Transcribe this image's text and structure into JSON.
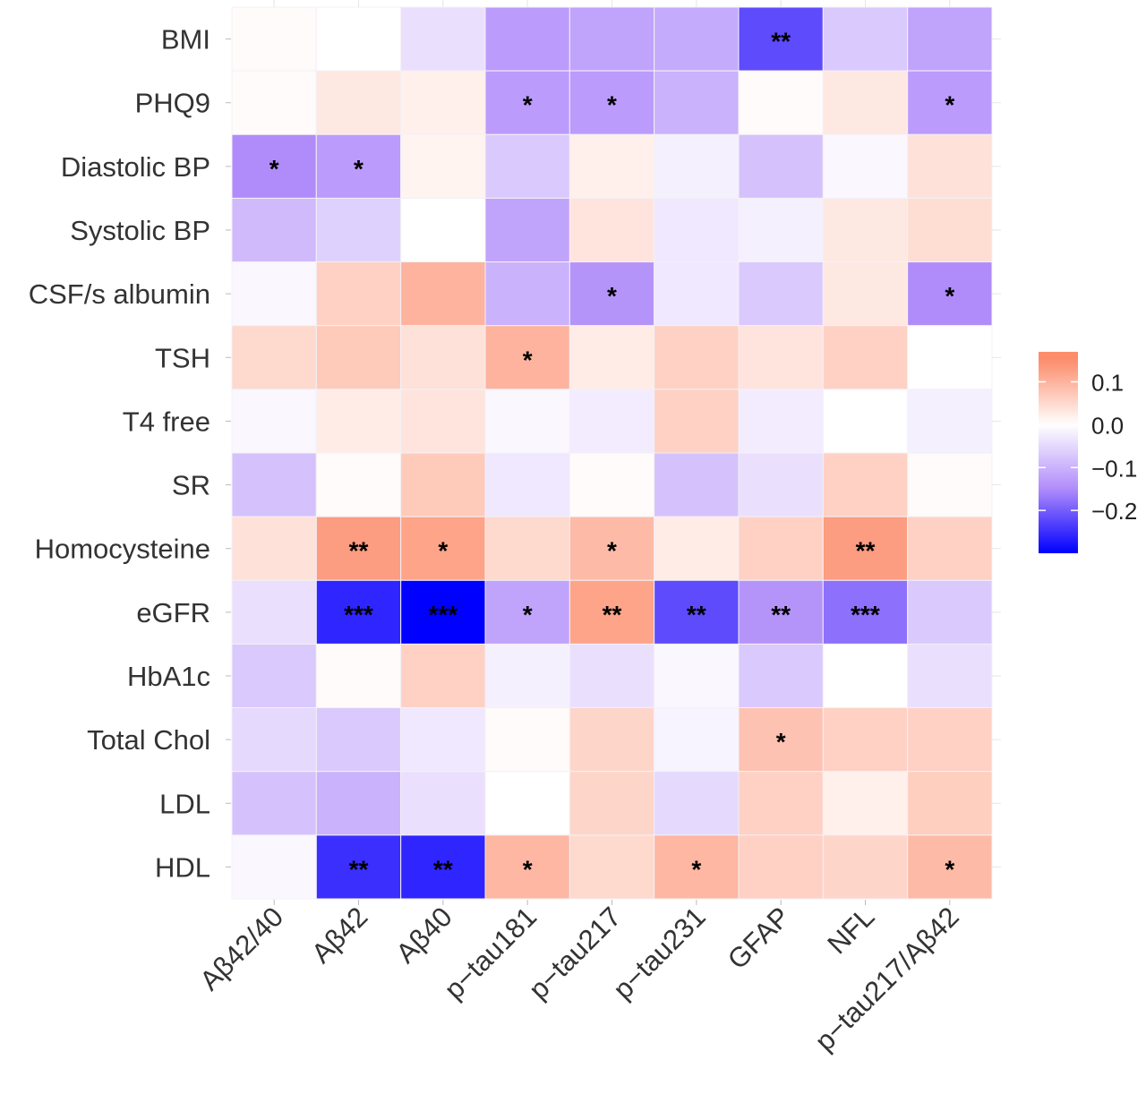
{
  "chart_data": {
    "type": "heatmap",
    "title": "",
    "xlabel": "",
    "ylabel": "",
    "x_categories": [
      "Aβ42/40",
      "Aβ42",
      "Aβ40",
      "p−tau181",
      "p−tau217",
      "p−tau231",
      "GFAP",
      "NFL",
      "p−tau217/Aβ42"
    ],
    "y_categories": [
      "BMI",
      "PHQ9",
      "Diastolic BP",
      "Systolic BP",
      "CSF/s albumin",
      "TSH",
      "T4 free",
      "SR",
      "Homocysteine",
      "eGFR",
      "HbA1c",
      "Total Chol",
      "LDL",
      "HDL"
    ],
    "values": [
      [
        0.005,
        0.0,
        -0.04,
        -0.13,
        -0.12,
        -0.11,
        -0.22,
        -0.07,
        -0.12
      ],
      [
        0.005,
        0.03,
        0.02,
        -0.13,
        -0.13,
        -0.1,
        0.005,
        0.03,
        -0.13
      ],
      [
        -0.15,
        -0.13,
        0.015,
        -0.07,
        0.02,
        -0.02,
        -0.08,
        -0.01,
        0.04
      ],
      [
        -0.09,
        -0.06,
        0.0,
        -0.12,
        0.035,
        -0.03,
        -0.02,
        0.03,
        0.045
      ],
      [
        -0.01,
        0.06,
        0.1,
        -0.1,
        -0.14,
        -0.03,
        -0.07,
        0.03,
        -0.15
      ],
      [
        0.05,
        0.07,
        0.04,
        0.1,
        0.025,
        0.06,
        0.035,
        0.06,
        0.0
      ],
      [
        -0.01,
        0.025,
        0.035,
        -0.01,
        -0.025,
        0.06,
        -0.025,
        0.0,
        -0.02
      ],
      [
        -0.08,
        0.005,
        0.07,
        -0.03,
        0.005,
        -0.08,
        -0.04,
        0.06,
        0.005
      ],
      [
        0.04,
        0.13,
        0.12,
        0.05,
        0.09,
        0.025,
        0.06,
        0.13,
        0.06
      ],
      [
        -0.04,
        -0.26,
        -0.31,
        -0.12,
        0.12,
        -0.22,
        -0.14,
        -0.18,
        -0.07
      ],
      [
        -0.07,
        0.005,
        0.06,
        -0.02,
        -0.04,
        -0.01,
        -0.07,
        0.0,
        -0.04
      ],
      [
        -0.05,
        -0.07,
        -0.03,
        0.005,
        0.055,
        -0.015,
        0.08,
        0.06,
        0.06
      ],
      [
        -0.08,
        -0.1,
        -0.04,
        0.0,
        0.055,
        -0.05,
        0.06,
        0.02,
        0.065
      ],
      [
        -0.01,
        -0.25,
        -0.26,
        0.095,
        0.05,
        0.095,
        0.06,
        0.055,
        0.09
      ]
    ],
    "significance": [
      [
        "",
        "",
        "",
        "",
        "",
        "",
        "**",
        "",
        ""
      ],
      [
        "",
        "",
        "",
        "*",
        "*",
        "",
        "",
        "",
        "*"
      ],
      [
        "*",
        "*",
        "",
        "",
        "",
        "",
        "",
        "",
        ""
      ],
      [
        "",
        "",
        "",
        "",
        "",
        "",
        "",
        "",
        ""
      ],
      [
        "",
        "",
        "",
        "",
        "*",
        "",
        "",
        "",
        "*"
      ],
      [
        "",
        "",
        "",
        "*",
        "",
        "",
        "",
        "",
        ""
      ],
      [
        "",
        "",
        "",
        "",
        "",
        "",
        "",
        "",
        ""
      ],
      [
        "",
        "",
        "",
        "",
        "",
        "",
        "",
        "",
        ""
      ],
      [
        "",
        "**",
        "*",
        "",
        "*",
        "",
        "",
        "**",
        ""
      ],
      [
        "",
        "***",
        "***",
        "*",
        "**",
        "**",
        "**",
        "***",
        ""
      ],
      [
        "",
        "",
        "",
        "",
        "",
        "",
        "",
        "",
        ""
      ],
      [
        "",
        "",
        "",
        "",
        "",
        "",
        "*",
        "",
        ""
      ],
      [
        "",
        "",
        "",
        "",
        "",
        "",
        "",
        "",
        ""
      ],
      [
        "",
        "**",
        "**",
        "*",
        "",
        "*",
        "",
        "",
        "*"
      ]
    ],
    "color_scale": {
      "low_color": "#0000ff",
      "mid_color": "#ffffff",
      "high_color": "#fc8d6c",
      "midpoint": 0.0,
      "range": [
        -0.3,
        0.17
      ]
    },
    "legend": {
      "position": "right",
      "ticks": [
        0.1,
        0.0,
        -0.1,
        -0.2
      ],
      "tick_labels": [
        "0.1",
        "0.0",
        "−0.1",
        "−0.2"
      ]
    },
    "grid": false
  }
}
